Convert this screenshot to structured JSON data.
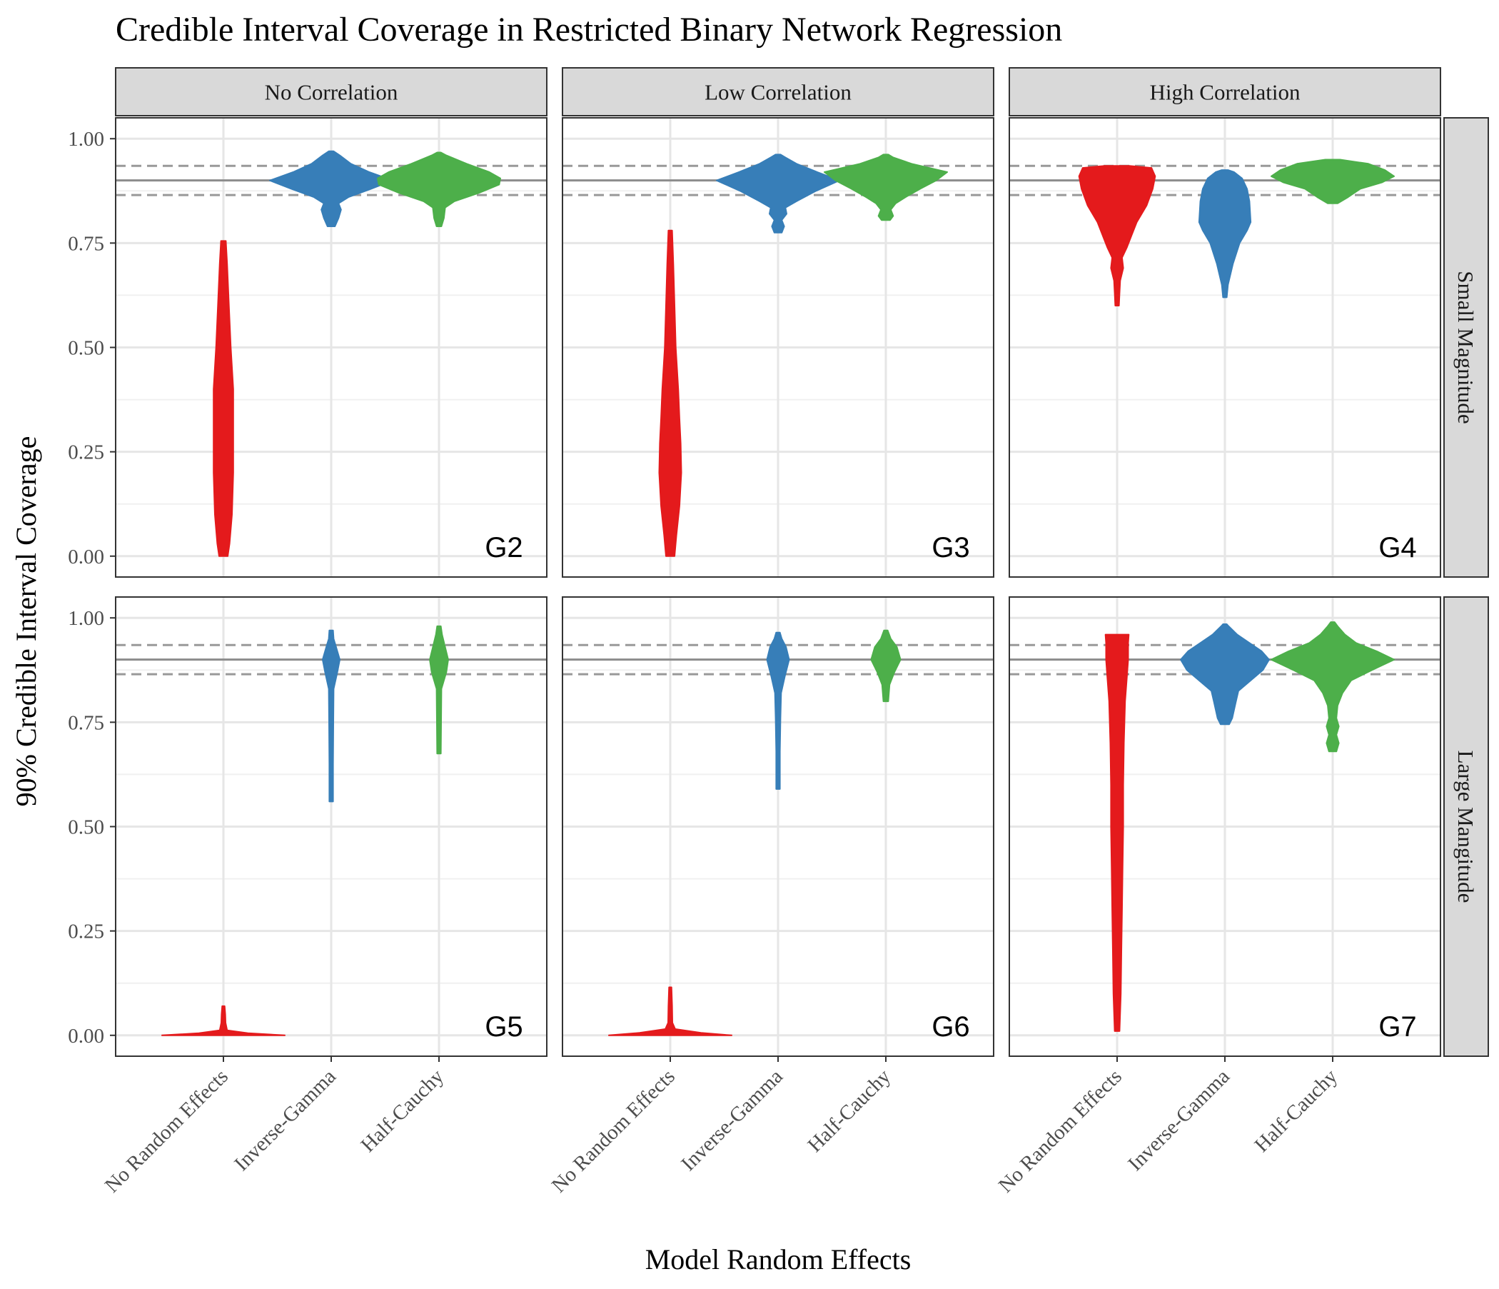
{
  "chart_data": {
    "type": "violin",
    "title": "Credible Interval Coverage in Restricted Binary Network Regression",
    "xlabel": "Model Random Effects",
    "ylabel": "90% Credible Interval Coverage",
    "categories": [
      "No Random Effects",
      "Inverse-Gamma",
      "Half-Cauchy"
    ],
    "category_colors": [
      "#e41a1c",
      "#377eb8",
      "#4daf4a"
    ],
    "columns": [
      "No Correlation",
      "Low Correlation",
      "High Correlation"
    ],
    "rows": [
      "Small Magnitude",
      "Large Mangitude"
    ],
    "ylim": [
      -0.05,
      1.05
    ],
    "yticks": [
      "0.00",
      "0.25",
      "0.50",
      "0.75",
      "1.00"
    ],
    "reference_lines": {
      "solid": 0.9,
      "dashed": [
        0.865,
        0.935
      ]
    },
    "grid": true,
    "panels": [
      {
        "label": "G2",
        "row": 0,
        "col": 0,
        "violins": [
          {
            "category": "No Random Effects",
            "profile": [
              [
                0.0,
                0.07
              ],
              [
                0.03,
                0.1
              ],
              [
                0.1,
                0.14
              ],
              [
                0.2,
                0.16
              ],
              [
                0.3,
                0.16
              ],
              [
                0.4,
                0.16
              ],
              [
                0.5,
                0.12
              ],
              [
                0.6,
                0.09
              ],
              [
                0.7,
                0.06
              ],
              [
                0.755,
                0.04
              ]
            ]
          },
          {
            "category": "Inverse-Gamma",
            "profile": [
              [
                0.79,
                0.06
              ],
              [
                0.81,
                0.12
              ],
              [
                0.83,
                0.16
              ],
              [
                0.845,
                0.12
              ],
              [
                0.86,
                0.28
              ],
              [
                0.88,
                0.65
              ],
              [
                0.9,
                1.0
              ],
              [
                0.92,
                0.62
              ],
              [
                0.94,
                0.32
              ],
              [
                0.96,
                0.14
              ],
              [
                0.97,
                0.04
              ]
            ]
          },
          {
            "category": "Half-Cauchy",
            "profile": [
              [
                0.79,
                0.04
              ],
              [
                0.81,
                0.08
              ],
              [
                0.835,
                0.1
              ],
              [
                0.85,
                0.25
              ],
              [
                0.87,
                0.65
              ],
              [
                0.89,
                0.98
              ],
              [
                0.905,
                1.0
              ],
              [
                0.92,
                0.82
              ],
              [
                0.94,
                0.45
              ],
              [
                0.96,
                0.12
              ],
              [
                0.967,
                0.03
              ]
            ]
          }
        ]
      },
      {
        "label": "G3",
        "row": 0,
        "col": 1,
        "violins": [
          {
            "category": "No Random Effects",
            "profile": [
              [
                0.0,
                0.07
              ],
              [
                0.05,
                0.1
              ],
              [
                0.12,
                0.15
              ],
              [
                0.2,
                0.18
              ],
              [
                0.27,
                0.17
              ],
              [
                0.33,
                0.15
              ],
              [
                0.4,
                0.13
              ],
              [
                0.5,
                0.09
              ],
              [
                0.6,
                0.07
              ],
              [
                0.7,
                0.05
              ],
              [
                0.78,
                0.03
              ]
            ]
          },
          {
            "category": "Inverse-Gamma",
            "profile": [
              [
                0.775,
                0.06
              ],
              [
                0.79,
                0.1
              ],
              [
                0.805,
                0.06
              ],
              [
                0.82,
                0.14
              ],
              [
                0.835,
                0.12
              ],
              [
                0.85,
                0.3
              ],
              [
                0.875,
                0.62
              ],
              [
                0.9,
                1.0
              ],
              [
                0.92,
                0.64
              ],
              [
                0.94,
                0.3
              ],
              [
                0.955,
                0.12
              ],
              [
                0.962,
                0.04
              ]
            ]
          },
          {
            "category": "Half-Cauchy",
            "profile": [
              [
                0.805,
                0.07
              ],
              [
                0.815,
                0.12
              ],
              [
                0.83,
                0.08
              ],
              [
                0.845,
                0.16
              ],
              [
                0.86,
                0.32
              ],
              [
                0.88,
                0.56
              ],
              [
                0.9,
                0.82
              ],
              [
                0.92,
                1.0
              ],
              [
                0.94,
                0.42
              ],
              [
                0.955,
                0.12
              ],
              [
                0.962,
                0.04
              ]
            ]
          }
        ]
      },
      {
        "label": "G4",
        "row": 0,
        "col": 2,
        "violins": [
          {
            "category": "No Random Effects",
            "profile": [
              [
                0.6,
                0.03
              ],
              [
                0.63,
                0.04
              ],
              [
                0.66,
                0.05
              ],
              [
                0.69,
                0.1
              ],
              [
                0.715,
                0.08
              ],
              [
                0.74,
                0.16
              ],
              [
                0.77,
                0.24
              ],
              [
                0.8,
                0.32
              ],
              [
                0.84,
                0.48
              ],
              [
                0.88,
                0.58
              ],
              [
                0.91,
                0.62
              ],
              [
                0.93,
                0.56
              ],
              [
                0.935,
                0.2
              ]
            ]
          },
          {
            "category": "Inverse-Gamma",
            "profile": [
              [
                0.62,
                0.03
              ],
              [
                0.65,
                0.05
              ],
              [
                0.7,
                0.13
              ],
              [
                0.75,
                0.24
              ],
              [
                0.78,
                0.36
              ],
              [
                0.8,
                0.42
              ],
              [
                0.85,
                0.4
              ],
              [
                0.88,
                0.36
              ],
              [
                0.905,
                0.28
              ],
              [
                0.92,
                0.15
              ],
              [
                0.925,
                0.05
              ]
            ]
          },
          {
            "category": "Half-Cauchy",
            "profile": [
              [
                0.845,
                0.08
              ],
              [
                0.86,
                0.25
              ],
              [
                0.88,
                0.45
              ],
              [
                0.895,
                0.8
              ],
              [
                0.91,
                1.0
              ],
              [
                0.925,
                0.85
              ],
              [
                0.94,
                0.58
              ],
              [
                0.95,
                0.12
              ]
            ]
          }
        ]
      },
      {
        "label": "G5",
        "row": 1,
        "col": 0,
        "violins": [
          {
            "category": "No Random Effects",
            "profile": [
              [
                0.0,
                1.0
              ],
              [
                0.005,
                0.4
              ],
              [
                0.012,
                0.06
              ],
              [
                0.03,
                0.035
              ],
              [
                0.05,
                0.03
              ],
              [
                0.07,
                0.02
              ]
            ]
          },
          {
            "category": "Inverse-Gamma",
            "profile": [
              [
                0.56,
                0.03
              ],
              [
                0.65,
                0.03
              ],
              [
                0.75,
                0.035
              ],
              [
                0.83,
                0.04
              ],
              [
                0.87,
                0.1
              ],
              [
                0.9,
                0.14
              ],
              [
                0.93,
                0.08
              ],
              [
                0.95,
                0.04
              ],
              [
                0.97,
                0.03
              ]
            ]
          },
          {
            "category": "Half-Cauchy",
            "profile": [
              [
                0.675,
                0.03
              ],
              [
                0.75,
                0.035
              ],
              [
                0.83,
                0.04
              ],
              [
                0.87,
                0.12
              ],
              [
                0.9,
                0.15
              ],
              [
                0.93,
                0.1
              ],
              [
                0.96,
                0.05
              ],
              [
                0.98,
                0.03
              ]
            ]
          }
        ]
      },
      {
        "label": "G6",
        "row": 1,
        "col": 1,
        "violins": [
          {
            "category": "No Random Effects",
            "profile": [
              [
                0.0,
                1.0
              ],
              [
                0.006,
                0.5
              ],
              [
                0.015,
                0.08
              ],
              [
                0.03,
                0.035
              ],
              [
                0.07,
                0.03
              ],
              [
                0.115,
                0.02
              ]
            ]
          },
          {
            "category": "Inverse-Gamma",
            "profile": [
              [
                0.59,
                0.03
              ],
              [
                0.68,
                0.03
              ],
              [
                0.76,
                0.04
              ],
              [
                0.82,
                0.05
              ],
              [
                0.86,
                0.11
              ],
              [
                0.9,
                0.18
              ],
              [
                0.93,
                0.13
              ],
              [
                0.95,
                0.06
              ],
              [
                0.965,
                0.03
              ]
            ]
          },
          {
            "category": "Half-Cauchy",
            "profile": [
              [
                0.8,
                0.04
              ],
              [
                0.84,
                0.06
              ],
              [
                0.87,
                0.14
              ],
              [
                0.9,
                0.24
              ],
              [
                0.93,
                0.18
              ],
              [
                0.95,
                0.08
              ],
              [
                0.97,
                0.03
              ]
            ]
          }
        ]
      },
      {
        "label": "G7",
        "row": 1,
        "col": 2,
        "violins": [
          {
            "category": "No Random Effects",
            "profile": [
              [
                0.01,
                0.04
              ],
              [
                0.1,
                0.06
              ],
              [
                0.2,
                0.07
              ],
              [
                0.3,
                0.08
              ],
              [
                0.4,
                0.09
              ],
              [
                0.5,
                0.1
              ],
              [
                0.6,
                0.1
              ],
              [
                0.7,
                0.11
              ],
              [
                0.8,
                0.13
              ],
              [
                0.86,
                0.16
              ],
              [
                0.9,
                0.18
              ],
              [
                0.94,
                0.18
              ],
              [
                0.96,
                0.19
              ]
            ]
          },
          {
            "category": "Inverse-Gamma",
            "profile": [
              [
                0.745,
                0.07
              ],
              [
                0.76,
                0.12
              ],
              [
                0.78,
                0.15
              ],
              [
                0.8,
                0.18
              ],
              [
                0.825,
                0.22
              ],
              [
                0.85,
                0.42
              ],
              [
                0.875,
                0.62
              ],
              [
                0.9,
                0.72
              ],
              [
                0.92,
                0.6
              ],
              [
                0.94,
                0.4
              ],
              [
                0.96,
                0.2
              ],
              [
                0.98,
                0.06
              ],
              [
                0.985,
                0.03
              ]
            ]
          },
          {
            "category": "Half-Cauchy",
            "profile": [
              [
                0.68,
                0.06
              ],
              [
                0.7,
                0.1
              ],
              [
                0.72,
                0.06
              ],
              [
                0.74,
                0.1
              ],
              [
                0.76,
                0.06
              ],
              [
                0.79,
                0.08
              ],
              [
                0.82,
                0.16
              ],
              [
                0.85,
                0.3
              ],
              [
                0.875,
                0.64
              ],
              [
                0.9,
                1.0
              ],
              [
                0.92,
                0.72
              ],
              [
                0.94,
                0.38
              ],
              [
                0.96,
                0.2
              ],
              [
                0.98,
                0.08
              ],
              [
                0.99,
                0.03
              ]
            ]
          }
        ]
      }
    ]
  }
}
